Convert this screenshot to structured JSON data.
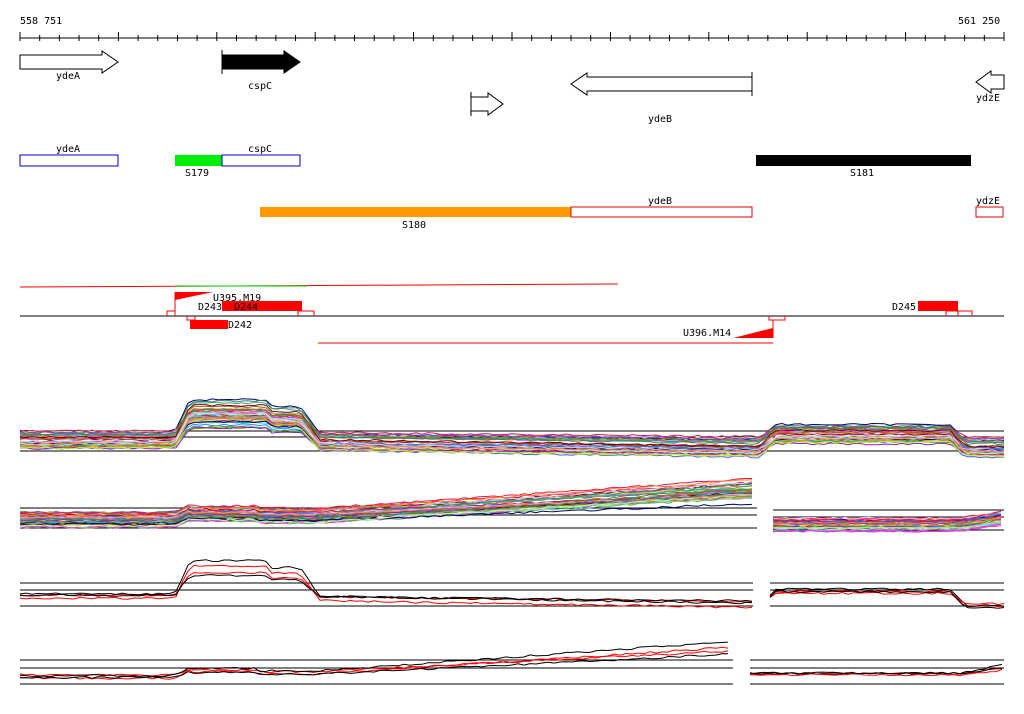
{
  "ruler": {
    "start_label": "558 751",
    "end_label": "561 250",
    "start_bp": 558751,
    "end_bp": 561250
  },
  "genes": [
    {
      "name": "ydeA",
      "strand": "+",
      "start": 558751,
      "end": 559003,
      "fill": "#ffffff"
    },
    {
      "name": "cspC",
      "strand": "+",
      "start": 559271,
      "end": 559470,
      "fill": "#000000"
    },
    {
      "name": "",
      "strand": "+",
      "start": 560000,
      "end": 560090,
      "fill": "#ffffff"
    },
    {
      "name": "ydeB",
      "strand": "-",
      "start": 560131,
      "end": 560670,
      "fill": "#ffffff"
    },
    {
      "name": "ydzE",
      "strand": "-",
      "start": 561175,
      "end": 561250,
      "fill": "#ffffff"
    }
  ],
  "annotations_row1": [
    {
      "name": "ydeA",
      "type": "box",
      "color": "#0000cc"
    },
    {
      "name": "S179",
      "type": "bar",
      "color": "#00ee00"
    },
    {
      "name": "cspC",
      "type": "box",
      "color": "#0000cc"
    },
    {
      "name": "S181",
      "type": "bar",
      "color": "#000000"
    }
  ],
  "annotations_row2": [
    {
      "name": "S180",
      "type": "bar",
      "color": "#ff9900"
    },
    {
      "name": "ydeB",
      "type": "box",
      "color": "#dd0000"
    },
    {
      "name": "ydzE",
      "type": "box",
      "color": "#dd0000"
    }
  ],
  "features": [
    {
      "name": "U395.M19",
      "kind": "upshift"
    },
    {
      "name": "D243",
      "kind": "down"
    },
    {
      "name": "D244",
      "kind": "down"
    },
    {
      "name": "D242",
      "kind": "down"
    },
    {
      "name": "U396.M14",
      "kind": "upshift"
    },
    {
      "name": "D245",
      "kind": "down"
    }
  ],
  "colors": {
    "accent_red": "#ff0000",
    "orange": "#ff9900",
    "green": "#00ee00",
    "blue": "#0000cc"
  },
  "chart_data": {
    "type": "line",
    "panels": [
      "expression-profiles",
      "expression-profiles-2",
      "summary-profile-1",
      "summary-profile-2"
    ]
  }
}
